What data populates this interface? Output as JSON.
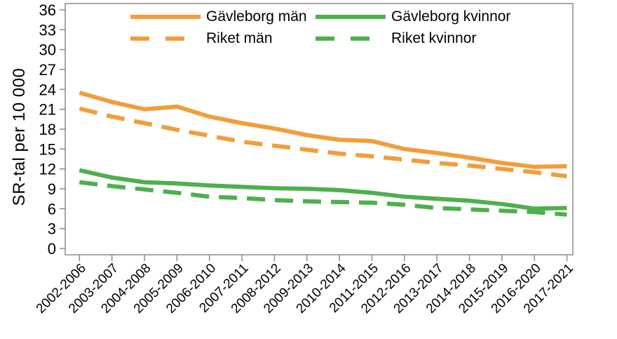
{
  "chart_data": {
    "type": "line",
    "title": "",
    "ylabel": "SR-tal per 10 000",
    "xlabel": "",
    "ylim": [
      0,
      36
    ],
    "yticks": [
      0,
      3,
      6,
      9,
      12,
      15,
      18,
      21,
      24,
      27,
      30,
      33,
      36
    ],
    "grid": false,
    "legend_position": "top-center-inside, two columns, no border",
    "categories": [
      "2002-2006",
      "2003-2007",
      "2004-2008",
      "2005-2009",
      "2006-2010",
      "2007-2011",
      "2008-2012",
      "2009-2013",
      "2010-2014",
      "2011-2015",
      "2012-2016",
      "2013-2017",
      "2014-2018",
      "2015-2019",
      "2016-2020",
      "2017-2021"
    ],
    "series": [
      {
        "name": "Gävleborg män",
        "color": "#F29D3B",
        "style": "solid",
        "values": [
          23.5,
          22.1,
          21.0,
          21.4,
          19.9,
          18.9,
          18.1,
          17.1,
          16.4,
          16.2,
          15.0,
          14.4,
          13.7,
          12.9,
          12.3,
          12.4
        ]
      },
      {
        "name": "Riket män",
        "color": "#F29D3B",
        "style": "dashed",
        "values": [
          21.1,
          19.9,
          18.9,
          17.9,
          17.0,
          16.1,
          15.5,
          14.9,
          14.3,
          13.9,
          13.4,
          12.9,
          12.5,
          12.0,
          11.5,
          10.9
        ]
      },
      {
        "name": "Gävleborg kvinnor",
        "color": "#4DB04D",
        "style": "solid",
        "values": [
          11.8,
          10.7,
          10.0,
          9.8,
          9.5,
          9.3,
          9.1,
          9.0,
          8.8,
          8.4,
          7.8,
          7.5,
          7.2,
          6.7,
          6.0,
          6.1
        ]
      },
      {
        "name": "Riket kvinnor",
        "color": "#4DB04D",
        "style": "dashed",
        "values": [
          10.0,
          9.4,
          8.9,
          8.4,
          7.8,
          7.6,
          7.3,
          7.1,
          7.0,
          6.9,
          6.6,
          6.1,
          5.9,
          5.7,
          5.5,
          5.1
        ]
      }
    ],
    "axis_color": "#8C8C8C",
    "text_color": "#000000"
  }
}
